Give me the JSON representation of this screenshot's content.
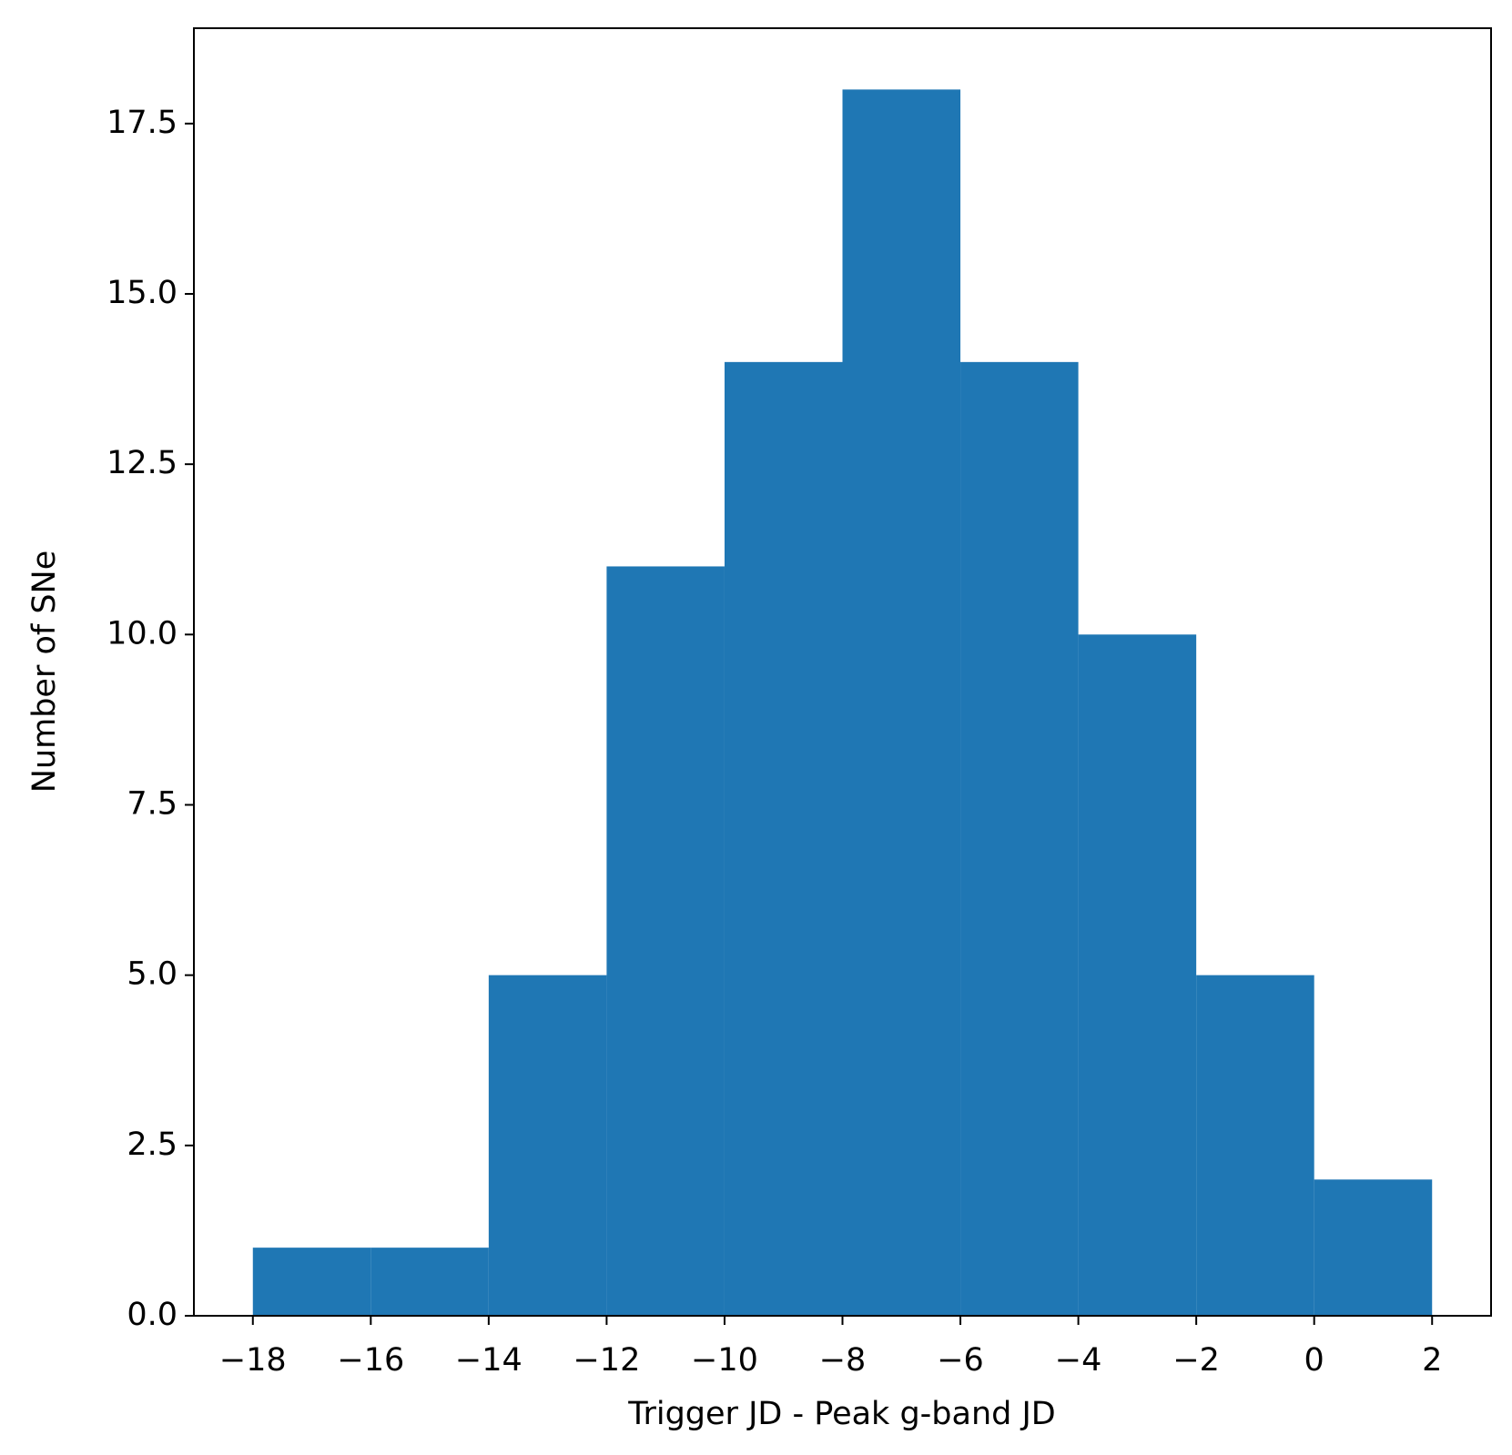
{
  "chart_data": {
    "type": "histogram",
    "xlabel": "Trigger JD - Peak g-band JD",
    "ylabel": "Number of SNe",
    "bins": [
      -18,
      -16,
      -14,
      -12,
      -10,
      -8,
      -6,
      -4,
      -2,
      0,
      2
    ],
    "values": [
      1,
      1,
      5,
      11,
      14,
      18,
      14,
      10,
      5,
      2
    ],
    "color": "#1f77b4",
    "xlim": [
      -19,
      3
    ],
    "ylim": [
      0,
      18.9
    ],
    "xticks": [
      {
        "value": -18,
        "label": "−18"
      },
      {
        "value": -16,
        "label": "−16"
      },
      {
        "value": -14,
        "label": "−14"
      },
      {
        "value": -12,
        "label": "−12"
      },
      {
        "value": -10,
        "label": "−10"
      },
      {
        "value": -8,
        "label": "−8"
      },
      {
        "value": -6,
        "label": "−6"
      },
      {
        "value": -4,
        "label": "−4"
      },
      {
        "value": -2,
        "label": "−2"
      },
      0,
      2
    ],
    "yticks": [
      {
        "value": 0,
        "label": "0.0"
      },
      2.5,
      {
        "value": 5,
        "label": "5.0"
      },
      7.5,
      {
        "value": 10,
        "label": "10.0"
      },
      12.5,
      {
        "value": 15,
        "label": "15.0"
      },
      17.5
    ],
    "grid": false
  }
}
